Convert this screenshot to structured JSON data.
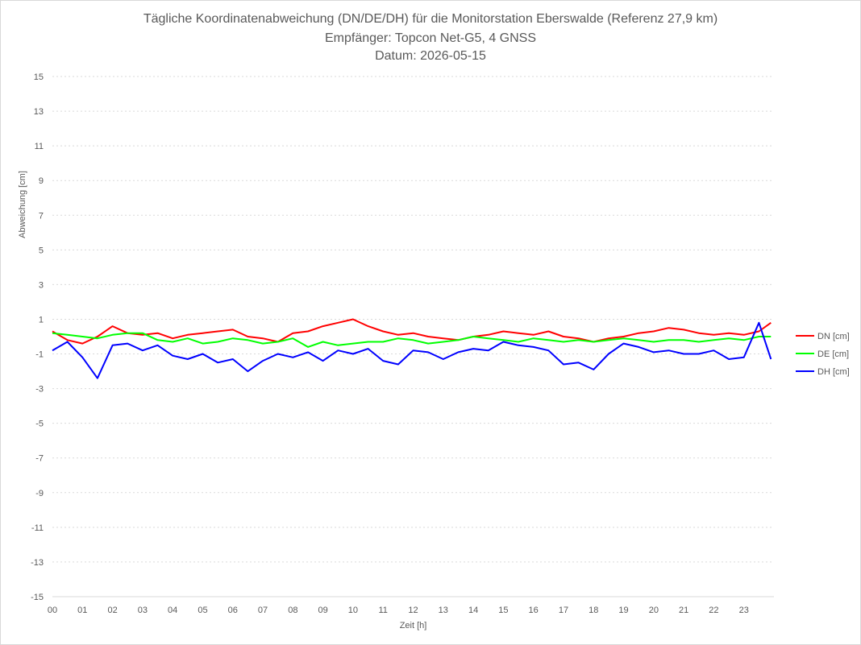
{
  "chart_data": {
    "type": "line",
    "title_lines": [
      "Tägliche Koordinatenabweichung (DN/DE/DH) für die Monitorstation Eberswalde (Referenz 27,9 km)",
      "Empfänger: Topcon Net-G5, 4 GNSS",
      "Datum: 2026-05-15"
    ],
    "xlabel": "Zeit [h]",
    "ylabel": "Abweichung [cm]",
    "xlim": [
      0,
      24
    ],
    "ylim": [
      -15,
      15
    ],
    "x_ticks": [
      "00",
      "01",
      "02",
      "03",
      "04",
      "05",
      "06",
      "07",
      "08",
      "09",
      "10",
      "11",
      "12",
      "13",
      "14",
      "15",
      "16",
      "17",
      "18",
      "19",
      "20",
      "21",
      "22",
      "23"
    ],
    "y_ticks": [
      15,
      13,
      11,
      9,
      7,
      5,
      3,
      1,
      -1,
      -3,
      -5,
      -7,
      -9,
      -11,
      -13,
      -15
    ],
    "grid": true,
    "legend_position": "right",
    "series": [
      {
        "name": "DN [cm]",
        "color": "#ff0000",
        "x": [
          0,
          0.5,
          1,
          1.5,
          2,
          2.5,
          3,
          3.5,
          4,
          4.5,
          5,
          5.5,
          6,
          6.5,
          7,
          7.5,
          8,
          8.5,
          9,
          9.5,
          10,
          10.5,
          11,
          11.5,
          12,
          12.5,
          13,
          13.5,
          14,
          14.5,
          15,
          15.5,
          16,
          16.5,
          17,
          17.5,
          18,
          18.5,
          19,
          19.5,
          20,
          20.5,
          21,
          21.5,
          22,
          22.5,
          23,
          23.5,
          23.9
        ],
        "values": [
          0.3,
          -0.2,
          -0.4,
          0,
          0.6,
          0.2,
          0.1,
          0.2,
          -0.1,
          0.1,
          0.2,
          0.3,
          0.4,
          0,
          -0.1,
          -0.3,
          0.2,
          0.3,
          0.6,
          0.8,
          1,
          0.6,
          0.3,
          0.1,
          0.2,
          0,
          -0.1,
          -0.2,
          0,
          0.1,
          0.3,
          0.2,
          0.1,
          0.3,
          0,
          -0.1,
          -0.3,
          -0.1,
          0,
          0.2,
          0.3,
          0.5,
          0.4,
          0.2,
          0.1,
          0.2,
          0.1,
          0.3,
          0.8
        ]
      },
      {
        "name": "DE [cm]",
        "color": "#00ff00",
        "x": [
          0,
          0.5,
          1,
          1.5,
          2,
          2.5,
          3,
          3.5,
          4,
          4.5,
          5,
          5.5,
          6,
          6.5,
          7,
          7.5,
          8,
          8.5,
          9,
          9.5,
          10,
          10.5,
          11,
          11.5,
          12,
          12.5,
          13,
          13.5,
          14,
          14.5,
          15,
          15.5,
          16,
          16.5,
          17,
          17.5,
          18,
          18.5,
          19,
          19.5,
          20,
          20.5,
          21,
          21.5,
          22,
          22.5,
          23,
          23.5,
          23.9
        ],
        "values": [
          0.2,
          0.1,
          0,
          -0.1,
          0.1,
          0.2,
          0.2,
          -0.2,
          -0.3,
          -0.1,
          -0.4,
          -0.3,
          -0.1,
          -0.2,
          -0.4,
          -0.3,
          -0.1,
          -0.6,
          -0.3,
          -0.5,
          -0.4,
          -0.3,
          -0.3,
          -0.1,
          -0.2,
          -0.4,
          -0.3,
          -0.2,
          0,
          -0.1,
          -0.2,
          -0.3,
          -0.1,
          -0.2,
          -0.3,
          -0.2,
          -0.3,
          -0.2,
          -0.1,
          -0.2,
          -0.3,
          -0.2,
          -0.2,
          -0.3,
          -0.2,
          -0.1,
          -0.2,
          0,
          0
        ]
      },
      {
        "name": "DH [cm]",
        "color": "#0000ff",
        "x": [
          0,
          0.5,
          1,
          1.5,
          2,
          2.5,
          3,
          3.5,
          4,
          4.5,
          5,
          5.5,
          6,
          6.5,
          7,
          7.5,
          8,
          8.5,
          9,
          9.5,
          10,
          10.5,
          11,
          11.5,
          12,
          12.5,
          13,
          13.5,
          14,
          14.5,
          15,
          15.5,
          16,
          16.5,
          17,
          17.5,
          18,
          18.5,
          19,
          19.5,
          20,
          20.5,
          21,
          21.5,
          22,
          22.5,
          23,
          23.5,
          23.9
        ],
        "values": [
          -0.8,
          -0.3,
          -1.2,
          -2.4,
          -0.5,
          -0.4,
          -0.8,
          -0.5,
          -1.1,
          -1.3,
          -1,
          -1.5,
          -1.3,
          -2,
          -1.4,
          -1,
          -1.2,
          -0.9,
          -1.4,
          -0.8,
          -1,
          -0.7,
          -1.4,
          -1.6,
          -0.8,
          -0.9,
          -1.3,
          -0.9,
          -0.7,
          -0.8,
          -0.3,
          -0.5,
          -0.6,
          -0.8,
          -1.6,
          -1.5,
          -1.9,
          -1,
          -0.4,
          -0.6,
          -0.9,
          -0.8,
          -1,
          -1,
          -0.8,
          -1.3,
          -1.2,
          0.8,
          -1.3
        ]
      }
    ]
  }
}
